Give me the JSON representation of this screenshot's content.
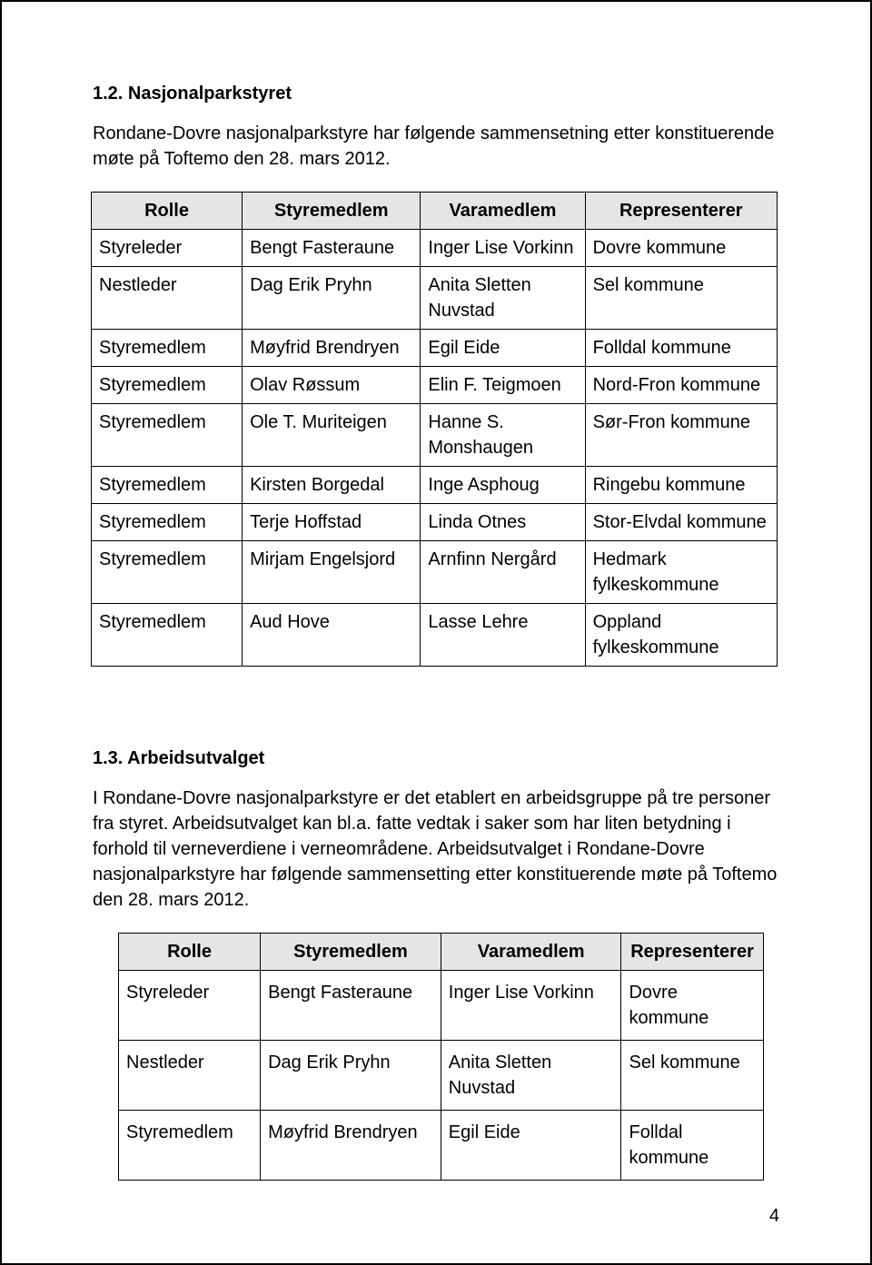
{
  "section1": {
    "heading": "1.2. Nasjonalparkstyret",
    "intro": "Rondane-Dovre nasjonalparkstyre har følgende sammensetning etter konstituerende møte på Toftemo den 28. mars 2012."
  },
  "table1": {
    "columns": [
      "Rolle",
      "Styremedlem",
      "Varamedlem",
      "Representerer"
    ],
    "rows": [
      [
        "Styreleder",
        "Bengt Fasteraune",
        "Inger Lise Vorkinn",
        "Dovre kommune"
      ],
      [
        "Nestleder",
        "Dag Erik Pryhn",
        "Anita Sletten Nuvstad",
        "Sel kommune"
      ],
      [
        "Styremedlem",
        "Møyfrid Brendryen",
        "Egil Eide",
        "Folldal kommune"
      ],
      [
        "Styremedlem",
        "Olav Røssum",
        "Elin F. Teigmoen",
        "Nord-Fron kommune"
      ],
      [
        "Styremedlem",
        "Ole T. Muriteigen",
        "Hanne S. Monshaugen",
        "Sør-Fron kommune"
      ],
      [
        "Styremedlem",
        "Kirsten Borgedal",
        "Inge Asphoug",
        "Ringebu kommune"
      ],
      [
        "Styremedlem",
        "Terje Hoffstad",
        "Linda Otnes",
        "Stor-Elvdal kommune"
      ],
      [
        "Styremedlem",
        "Mirjam Engelsjord",
        "Arnfinn Nergård",
        "Hedmark fylkeskommune"
      ],
      [
        "Styremedlem",
        "Aud Hove",
        "Lasse Lehre",
        "Oppland fylkeskommune"
      ]
    ]
  },
  "section2": {
    "heading": "1.3. Arbeidsutvalget",
    "intro": "I Rondane-Dovre nasjonalparkstyre er det etablert en arbeidsgruppe på tre personer fra styret. Arbeidsutvalget kan bl.a. fatte vedtak i saker som har liten betydning i forhold til verneverdiene i verneområdene. Arbeidsutvalget i Rondane-Dovre nasjonalparkstyre har følgende sammensetting etter konstituerende møte på Toftemo den 28. mars 2012."
  },
  "table2": {
    "columns": [
      "Rolle",
      "Styremedlem",
      "Varamedlem",
      "Representerer"
    ],
    "rows": [
      [
        "Styreleder",
        "Bengt Fasteraune",
        "Inger Lise Vorkinn",
        "Dovre kommune"
      ],
      [
        "Nestleder",
        "Dag Erik Pryhn",
        "Anita Sletten Nuvstad",
        "Sel kommune"
      ],
      [
        "Styremedlem",
        "Møyfrid Brendryen",
        "Egil Eide",
        "Folldal kommune"
      ]
    ]
  },
  "pageNumber": "4"
}
